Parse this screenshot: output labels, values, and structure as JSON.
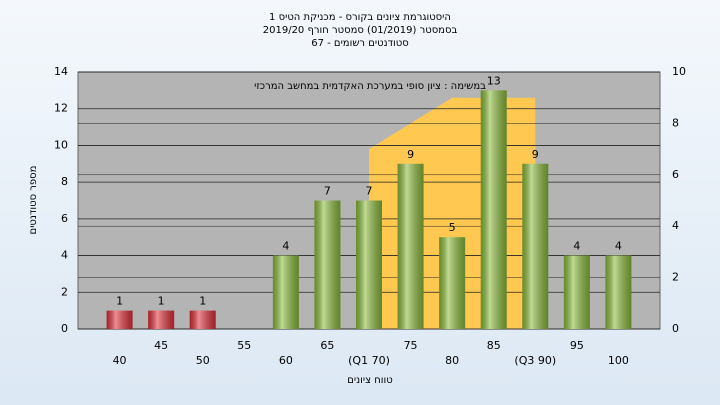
{
  "chart_data": {
    "type": "bar",
    "title": "היסטוגרמת ציונים בקורס - מכניקת הטיס 1",
    "subtitle": "בסמסטר  (01/2019)  סמסטר חורף 2019/20",
    "subtitle2": "סטודנטים רשומים - 67",
    "annotation": "במשימה : ציון סופי במערכת האקדמית במחשב המרכזי",
    "x_label": "טווח ציונים",
    "y_label": "מספר סטודנטים",
    "categories": [
      "40",
      "45",
      "50",
      "55",
      "60",
      "65",
      "(Q1 70)",
      "75",
      "80",
      "85",
      "(Q3 90)",
      "95",
      "100"
    ],
    "values": [
      1,
      1,
      1,
      null,
      4,
      7,
      7,
      9,
      5,
      13,
      9,
      4,
      4
    ],
    "colors": [
      "#e0303a",
      "#e0303a",
      "#e0303a",
      null,
      "#8cbc3c",
      "#8cbc3c",
      "#8cbc3c",
      "#8cbc3c",
      "#8cbc3c",
      "#8cbc3c",
      "#8cbc3c",
      "#8cbc3c",
      "#8cbc3c"
    ],
    "area": {
      "axis": "y2",
      "color": "#ffc850",
      "values": [
        null,
        null,
        null,
        null,
        null,
        null,
        7,
        8,
        9,
        9,
        9,
        null,
        null
      ]
    },
    "ylim": [
      0,
      14
    ],
    "yticks": [
      0,
      2,
      4,
      6,
      8,
      10,
      12,
      14
    ],
    "y2lim": [
      0,
      10
    ],
    "y2ticks": [
      0,
      2,
      4,
      6,
      8,
      10
    ],
    "grid": true
  }
}
